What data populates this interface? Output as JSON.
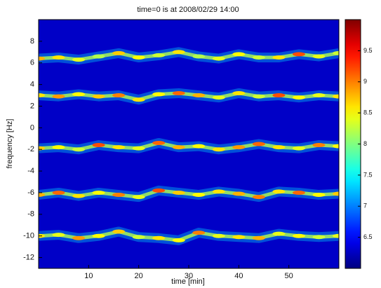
{
  "chart_data": {
    "type": "spectrogram",
    "title": "time=0 is at 2008/02/29 14:00",
    "x_label": "time [min]",
    "y_label": "frequency [Hz]",
    "xlim": [
      0,
      60
    ],
    "xticks": [
      10,
      20,
      30,
      40,
      50
    ],
    "ylim": [
      -13,
      10
    ],
    "yticks": [
      -12,
      -10,
      -8,
      -6,
      -4,
      -2,
      0,
      2,
      4,
      6,
      8
    ],
    "clim": [
      6,
      10
    ],
    "cticks": [
      6.5,
      7,
      7.5,
      8,
      8.5,
      9,
      9.5
    ],
    "colormap": "jet",
    "x": [
      0,
      4,
      8,
      12,
      16,
      20,
      24,
      28,
      32,
      36,
      40,
      44,
      48,
      52,
      56,
      60
    ],
    "series": [
      {
        "values": [
          6.4,
          6.5,
          6.3,
          6.6,
          6.9,
          6.5,
          6.7,
          7.0,
          6.6,
          6.4,
          6.8,
          6.5,
          6.5,
          6.8,
          6.6,
          6.9
        ],
        "levels": [
          8.8,
          8.6,
          8.4,
          8.2,
          8.7,
          8.5,
          8.3,
          8.6,
          8.2,
          8.4,
          8.5,
          8.3,
          8.6,
          9.2,
          8.4,
          8.3
        ]
      },
      {
        "values": [
          3.0,
          2.9,
          3.1,
          2.9,
          3.0,
          2.6,
          3.1,
          3.2,
          3.0,
          2.8,
          3.2,
          2.9,
          3.0,
          2.8,
          3.0,
          2.9
        ],
        "levels": [
          8.6,
          8.9,
          8.5,
          8.7,
          9.0,
          8.6,
          8.5,
          9.1,
          8.8,
          8.4,
          8.6,
          8.3,
          9.2,
          8.5,
          8.4,
          8.6
        ]
      },
      {
        "values": [
          -1.9,
          -1.8,
          -2.0,
          -1.6,
          -1.8,
          -1.9,
          -1.4,
          -1.8,
          -1.7,
          -2.0,
          -1.8,
          -1.5,
          -1.8,
          -1.9,
          -1.6,
          -1.7
        ],
        "levels": [
          8.7,
          8.5,
          8.3,
          9.2,
          8.6,
          8.4,
          9.1,
          8.8,
          8.5,
          8.6,
          8.9,
          9.1,
          8.6,
          8.4,
          9.0,
          8.5
        ]
      },
      {
        "values": [
          -6.2,
          -6.0,
          -6.3,
          -6.0,
          -6.2,
          -6.4,
          -5.8,
          -6.0,
          -6.2,
          -5.9,
          -6.1,
          -6.4,
          -5.9,
          -6.0,
          -6.2,
          -6.1
        ],
        "levels": [
          8.8,
          9.1,
          8.6,
          8.5,
          9.0,
          8.4,
          9.2,
          8.7,
          8.5,
          8.6,
          8.8,
          9.0,
          8.6,
          9.1,
          8.5,
          8.7
        ]
      },
      {
        "values": [
          -10.0,
          -9.9,
          -10.2,
          -10.0,
          -9.6,
          -10.1,
          -10.2,
          -10.4,
          -9.7,
          -10.0,
          -10.1,
          -10.2,
          -9.8,
          -10.0,
          -10.1,
          -10.0
        ],
        "levels": [
          8.6,
          8.4,
          8.9,
          8.5,
          8.7,
          8.3,
          8.6,
          8.5,
          9.0,
          8.4,
          8.6,
          8.8,
          8.4,
          8.5,
          8.3,
          8.4
        ]
      }
    ]
  }
}
